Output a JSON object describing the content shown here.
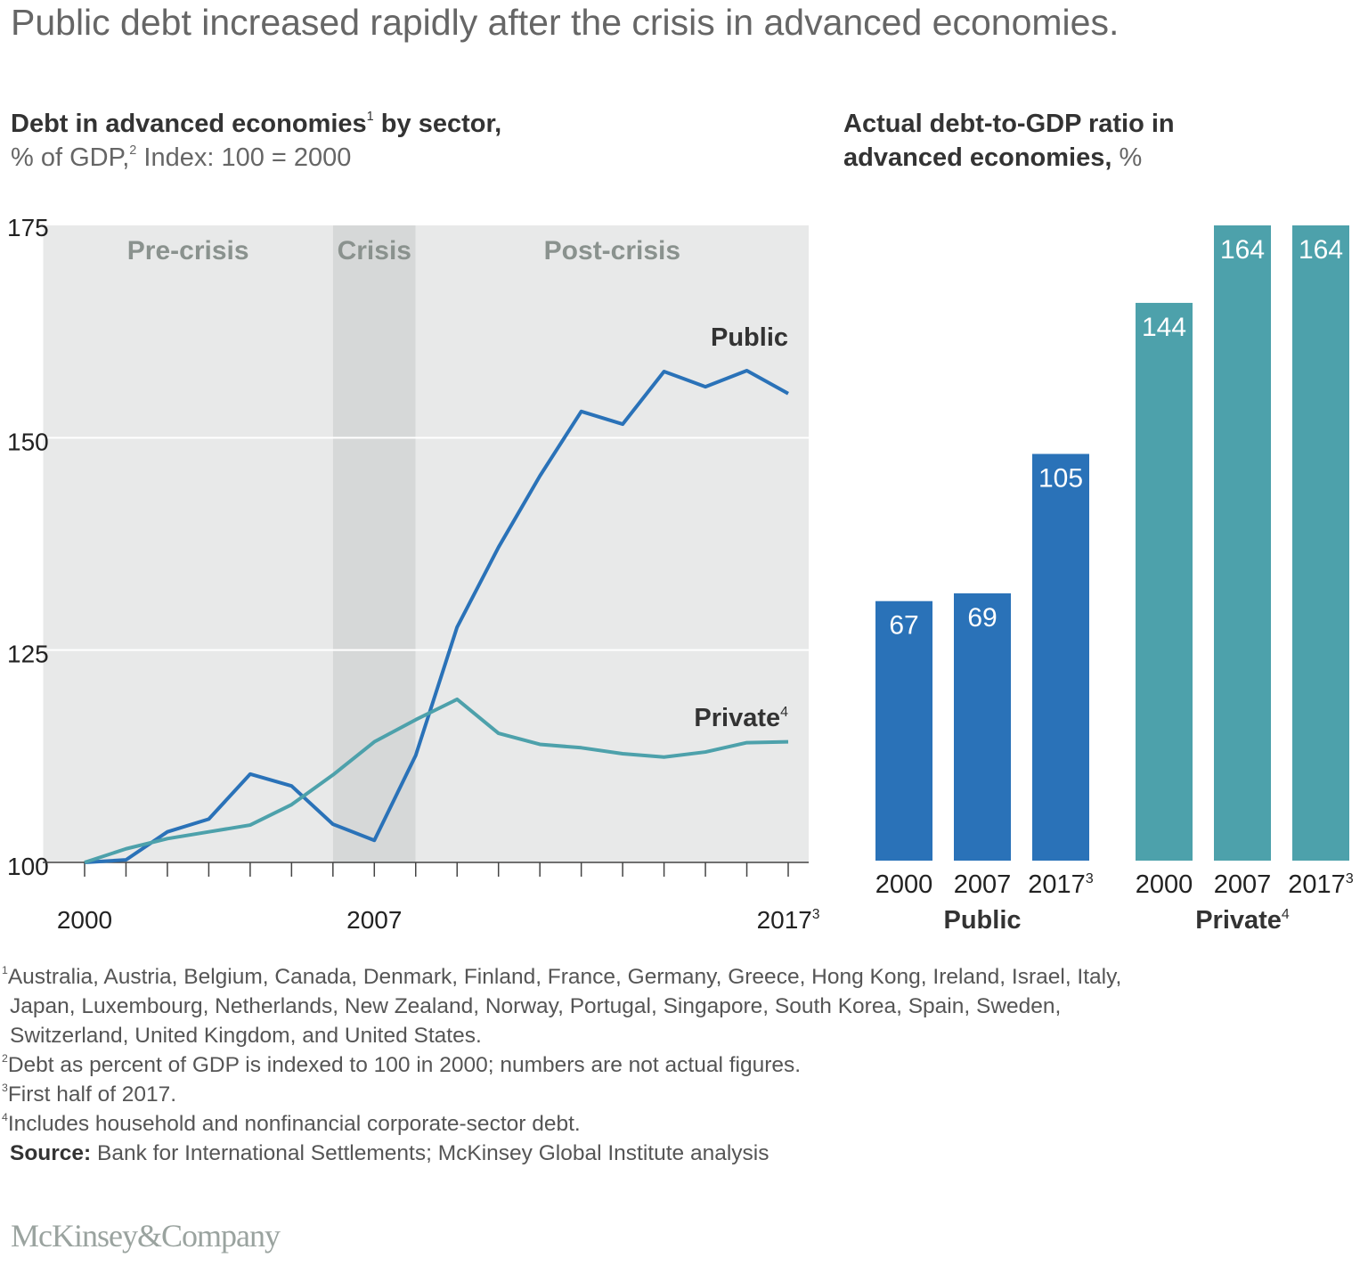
{
  "title": "Public debt increased rapidly after the crisis in advanced economies.",
  "colors": {
    "public": "#2a72b8",
    "private": "#4da1ab",
    "plot_bg": "#e8e9e9",
    "crisis_bg": "#d6d8d8",
    "region_label": "#8a928e"
  },
  "chart_data": [
    {
      "type": "line",
      "title_bold": "Debt in advanced economies",
      "title_sup": "1",
      "title_bold_end": " by sector,",
      "subtitle": "% of GDP,",
      "subtitle_sup": "2",
      "subtitle_end": " Index: 100 = 2000",
      "x": [
        2000,
        2001,
        2002,
        2003,
        2004,
        2005,
        2006,
        2007,
        2008,
        2009,
        2010,
        2011,
        2012,
        2013,
        2014,
        2015,
        2016,
        2017
      ],
      "xlim": [
        1999,
        2017.5
      ],
      "ylim": [
        100,
        175
      ],
      "yticks": [
        "100",
        "125",
        "150",
        "175"
      ],
      "ytick_values": [
        100,
        125,
        150,
        175
      ],
      "xtick_labels": [
        {
          "value": 2000,
          "text": "2000",
          "sup": ""
        },
        {
          "value": 2007,
          "text": "2007",
          "sup": ""
        },
        {
          "value": 2017,
          "text": "2017",
          "sup": "3"
        }
      ],
      "grid": true,
      "regions": [
        {
          "label": "Pre-crisis",
          "from": 1999,
          "to": 2006
        },
        {
          "label": "Crisis",
          "from": 2006,
          "to": 2008
        },
        {
          "label": "Post-crisis",
          "from": 2008,
          "to": 2017.5
        }
      ],
      "series": [
        {
          "name": "Public",
          "sup": "",
          "values": [
            100,
            100.3,
            103.6,
            105.1,
            110.4,
            109.0,
            104.5,
            102.6,
            112.6,
            127.7,
            137.1,
            145.5,
            153.1,
            151.6,
            157.8,
            156.0,
            157.9,
            155.2
          ]
        },
        {
          "name": "Private",
          "sup": "4",
          "values": [
            100,
            101.6,
            102.8,
            103.6,
            104.4,
            106.8,
            110.3,
            114.2,
            116.8,
            119.2,
            115.2,
            113.9,
            113.5,
            112.8,
            112.4,
            113.0,
            114.1,
            114.2
          ]
        }
      ]
    },
    {
      "type": "bar",
      "title_line1": "Actual debt-to-GDP ratio in",
      "title_line2": "advanced economies,",
      "unit": " %",
      "ylim": [
        0,
        164
      ],
      "groups": [
        {
          "name": "Public",
          "sup": "",
          "categories": [
            {
              "text": "2000",
              "sup": ""
            },
            {
              "text": "2007",
              "sup": ""
            },
            {
              "text": "2017",
              "sup": "3"
            }
          ],
          "values": [
            67,
            69,
            105
          ]
        },
        {
          "name": "Private",
          "sup": "4",
          "categories": [
            {
              "text": "2000",
              "sup": ""
            },
            {
              "text": "2007",
              "sup": ""
            },
            {
              "text": "2017",
              "sup": "3"
            }
          ],
          "values": [
            144,
            164,
            164
          ]
        }
      ]
    }
  ],
  "footnotes": {
    "n1_sup": "1",
    "n1_line1": "Australia, Austria, Belgium, Canada, Denmark, Finland, France, Germany, Greece, Hong Kong, Ireland, Israel, Italy,",
    "n1_line2": "Japan, Luxembourg, Netherlands, New Zealand, Norway, Portugal, Singapore, South Korea, Spain, Sweden,",
    "n1_line3": "Switzerland, United Kingdom, and United States.",
    "n2_sup": "2",
    "n2": "Debt as percent of GDP is indexed to 100 in 2000; numbers are not actual figures.",
    "n3_sup": "3",
    "n3": "First half of 2017.",
    "n4_sup": "4",
    "n4": "Includes household and nonfinancial corporate-sector debt.",
    "source_label": "Source:",
    "source": " Bank for International Settlements; McKinsey Global Institute analysis"
  },
  "logo": "McKinsey&Company"
}
